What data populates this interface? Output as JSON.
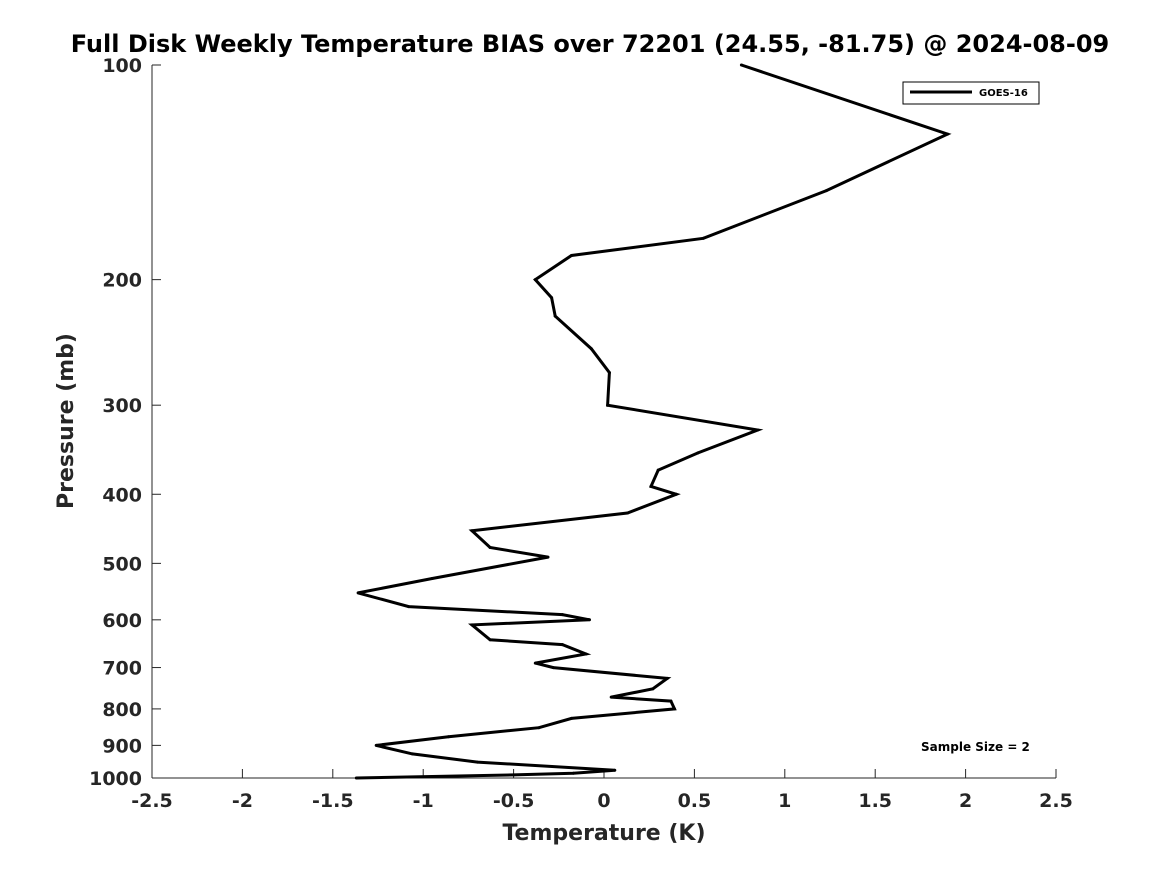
{
  "chart_data": {
    "type": "line",
    "title": "Full Disk Weekly Temperature BIAS over 72201 (24.55, -81.75) @ 2024-08-09",
    "xlabel": "Temperature (K)",
    "ylabel": "Pressure (mb)",
    "xlim": [
      -2.5,
      2.5
    ],
    "ylim": [
      1000,
      100
    ],
    "yscale": "log",
    "y_reversed": true,
    "x_ticks": [
      "-2.5",
      "-2",
      "-1.5",
      "-1",
      "-0.5",
      "0",
      "0.5",
      "1",
      "1.5",
      "2",
      "2.5"
    ],
    "x_tick_values": [
      -2.5,
      -2,
      -1.5,
      -1,
      -0.5,
      0,
      0.5,
      1,
      1.5,
      2,
      2.5
    ],
    "y_ticks": [
      "100",
      "200",
      "300",
      "400",
      "500",
      "600",
      "700",
      "800",
      "900",
      "1000"
    ],
    "y_tick_values": [
      100,
      200,
      300,
      400,
      500,
      600,
      700,
      800,
      900,
      1000
    ],
    "grid": false,
    "legend": {
      "placement": "top-right",
      "entries": [
        "GOES-16"
      ]
    },
    "annotation": "Sample Size = 2",
    "series": [
      {
        "name": "GOES-16",
        "color": "#000000",
        "x": [
          0.76,
          1.9,
          1.23,
          0.55,
          -0.18,
          -0.38,
          -0.29,
          -0.27,
          -0.07,
          0.03,
          0.02,
          0.85,
          0.52,
          0.3,
          0.26,
          0.4,
          0.13,
          -0.73,
          -0.63,
          -0.31,
          -0.95,
          -1.36,
          -1.08,
          -0.23,
          -0.08,
          -0.73,
          -0.63,
          -0.23,
          -0.1,
          -0.38,
          -0.28,
          0.35,
          0.27,
          0.04,
          0.37,
          0.39,
          -0.18,
          -0.36,
          -0.86,
          -1.26,
          -1.06,
          -0.7,
          0.06,
          -0.17,
          -0.5,
          -1.37
        ],
        "y": [
          100,
          125,
          150,
          175,
          185,
          200,
          212,
          225,
          250,
          270,
          300,
          325,
          350,
          370,
          390,
          400,
          425,
          450,
          475,
          490,
          525,
          550,
          575,
          590,
          600,
          610,
          640,
          650,
          670,
          690,
          700,
          725,
          750,
          770,
          780,
          800,
          825,
          850,
          875,
          900,
          925,
          950,
          975,
          985,
          990,
          1000
        ]
      }
    ]
  }
}
